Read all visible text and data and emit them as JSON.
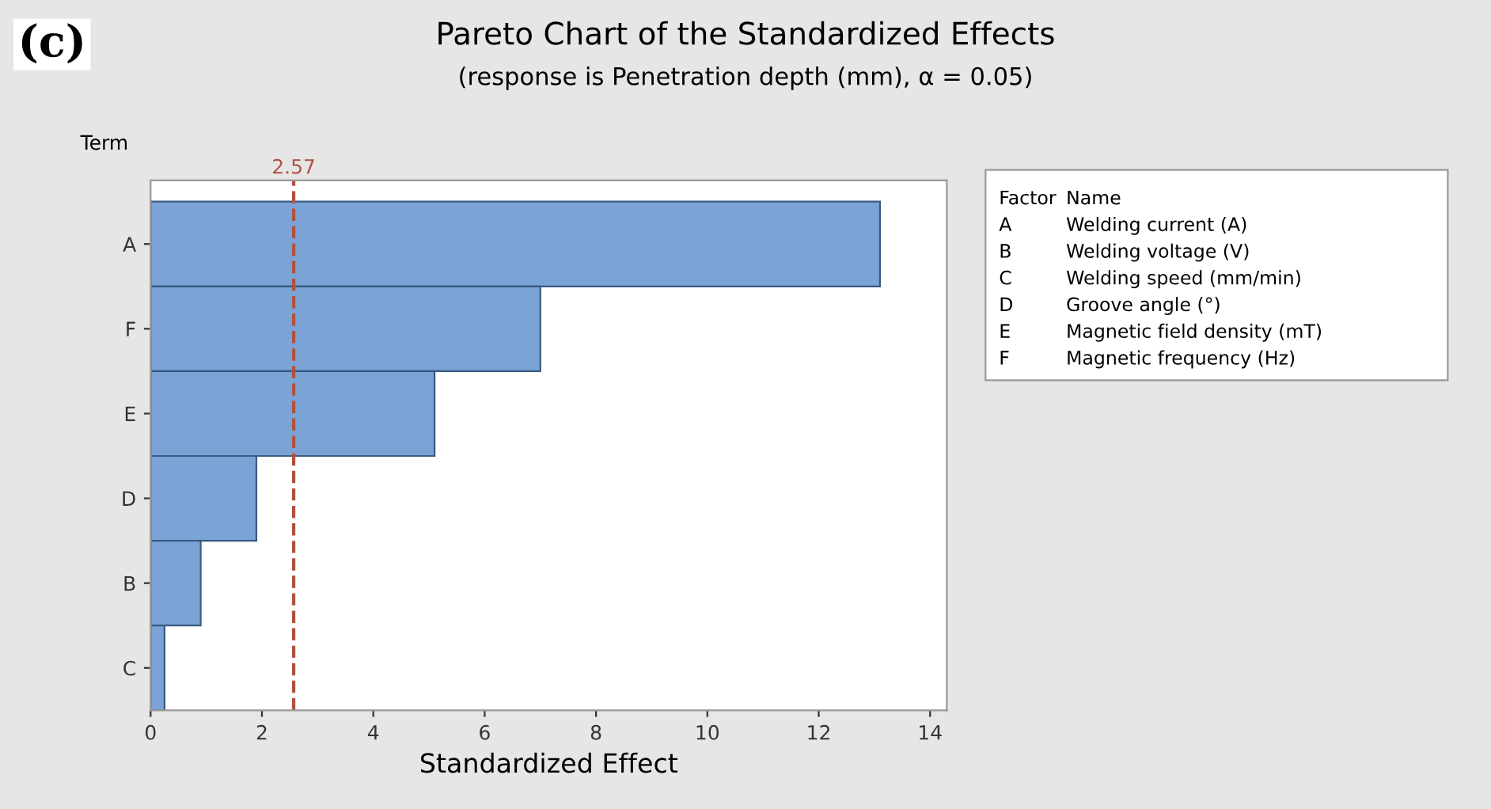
{
  "chart_data": {
    "type": "bar",
    "orientation": "horizontal",
    "title": "Pareto Chart of the Standardized Effects",
    "subtitle": "(response is Penetration depth (mm), α = 0.05)",
    "xlabel": "Standardized Effect",
    "ylabel": "Term",
    "categories": [
      "A",
      "F",
      "E",
      "D",
      "B",
      "C"
    ],
    "values": [
      13.1,
      7.0,
      5.1,
      1.9,
      0.9,
      0.25
    ],
    "color": "#7ba3d6",
    "xlim": [
      0,
      14.3
    ],
    "xticks": [
      0,
      2,
      4,
      6,
      8,
      10,
      12,
      14
    ],
    "grid": false,
    "legend": false,
    "ref_lines": [
      {
        "axis": "x",
        "value": 2.57,
        "label": "2.57",
        "color": "#b0523f",
        "line_style": "dashed"
      }
    ],
    "annotations": [
      "(c)",
      "Factor",
      "Name",
      "A",
      "Welding current (A)",
      "B",
      "Welding voltage (V)",
      "C",
      "Welding speed (mm/min)",
      "D",
      "Groove angle (°)",
      "E",
      "Magnetic field density (mT)",
      "F",
      "Magnetic frequency (Hz)"
    ]
  }
}
